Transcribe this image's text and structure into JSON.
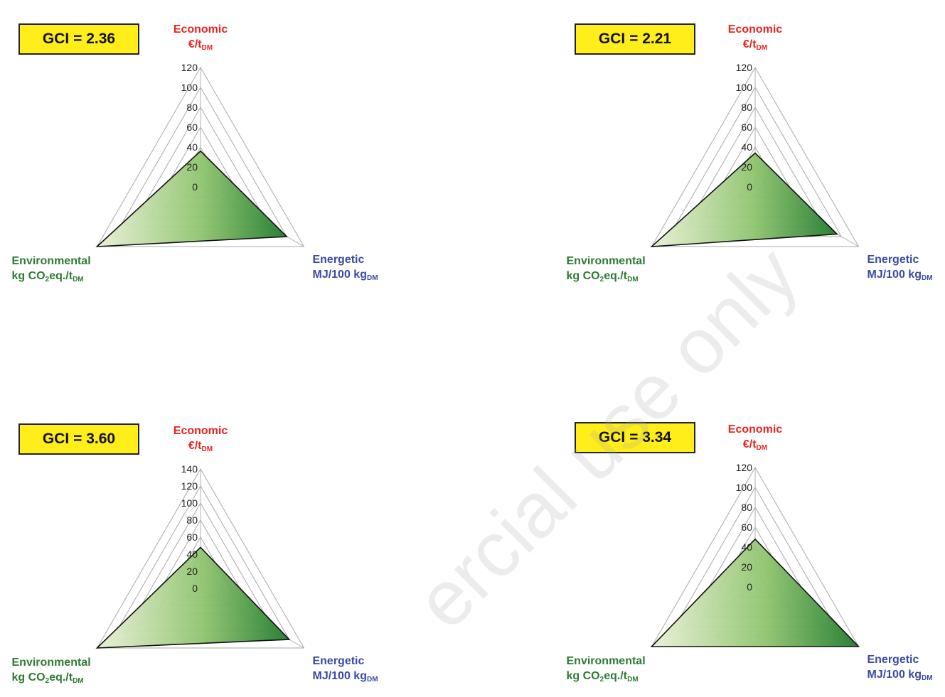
{
  "watermark": "ercial use only",
  "colors": {
    "economic": "#e8231f",
    "energetic": "#3b4aa3",
    "environmental": "#2f7a35",
    "gci_box": "#ffee1a"
  },
  "axis_labels": {
    "economic_name": "Economic",
    "economic_unit": "€/t",
    "economic_unit_sub": "DM",
    "energetic_name": "Energetic",
    "energetic_unit": "MJ/100 kg",
    "energetic_unit_sub": "DM",
    "environmental_name": "Environmental",
    "environmental_unit_pre": "kg CO",
    "environmental_unit_sub1": "2",
    "environmental_unit_mid": "eq./t",
    "environmental_unit_sub2": "DM"
  },
  "chart_data": [
    {
      "type": "radar",
      "annotation": "GCI = 2.36",
      "axes": [
        "Economic",
        "Energetic",
        "Environmental"
      ],
      "ticks": [
        "0",
        "20",
        "40",
        "60",
        "80",
        "100",
        "120"
      ],
      "range": [
        0,
        120
      ],
      "grid": true,
      "values": [
        36,
        100,
        120
      ]
    },
    {
      "type": "radar",
      "annotation": "GCI = 2.21",
      "axes": [
        "Economic",
        "Energetic",
        "Environmental"
      ],
      "ticks": [
        "0",
        "20",
        "40",
        "60",
        "80",
        "100",
        "120"
      ],
      "range": [
        0,
        120
      ],
      "grid": true,
      "values": [
        34,
        95,
        120
      ]
    },
    {
      "type": "radar",
      "annotation": "GCI = 3.60",
      "axes": [
        "Economic",
        "Energetic",
        "Environmental"
      ],
      "ticks": [
        "0",
        "20",
        "40",
        "60",
        "80",
        "100",
        "120",
        "140"
      ],
      "range": [
        0,
        140
      ],
      "grid": true,
      "values": [
        48,
        120,
        140
      ]
    },
    {
      "type": "radar",
      "annotation": "GCI = 3.34",
      "axes": [
        "Economic",
        "Energetic",
        "Environmental"
      ],
      "ticks": [
        "0",
        "20",
        "40",
        "60",
        "80",
        "100",
        "120"
      ],
      "range": [
        0,
        120
      ],
      "grid": true,
      "values": [
        48,
        120,
        120
      ]
    }
  ]
}
